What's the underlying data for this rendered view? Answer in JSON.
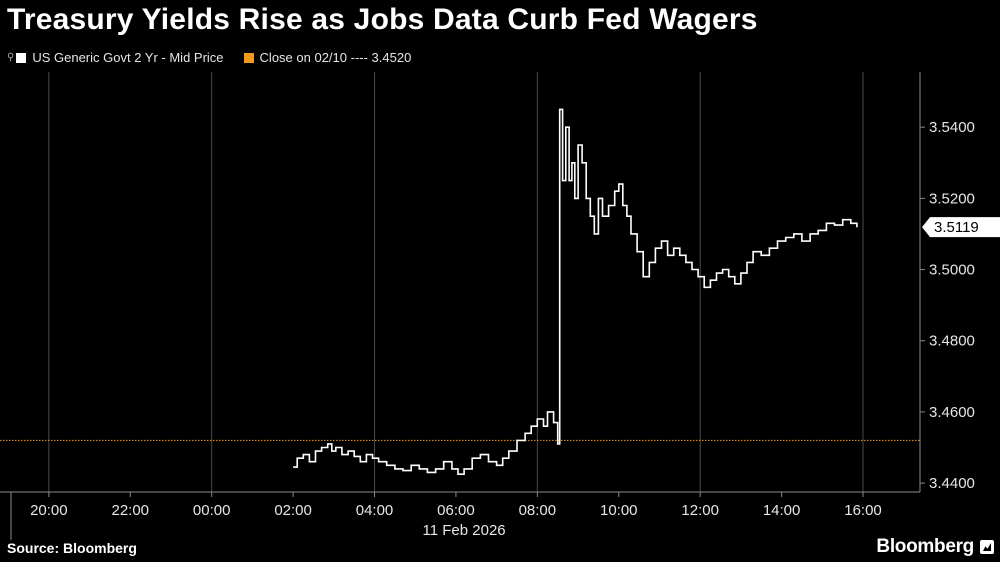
{
  "header": {
    "title": "Treasury Yields Rise as Jobs Data Curb Fed Wagers"
  },
  "legend": {
    "series_label": "US Generic Govt 2 Yr - Mid Price",
    "close_label": "Close on 02/10 ---- 3.4520"
  },
  "footer": {
    "source": "Source: Bloomberg",
    "brand": "Bloomberg"
  },
  "colors": {
    "series": "#ffffff",
    "close_line": "#f39a1b",
    "grid": "#4a4a4a",
    "background": "#000000"
  },
  "chart_data": {
    "type": "line",
    "title": "Treasury Yields Rise as Jobs Data Curb Fed Wagers",
    "xlabel": "11 Feb 2026",
    "ylabel": "",
    "x_ticks": [
      "20:00",
      "22:00",
      "00:00",
      "02:00",
      "04:00",
      "06:00",
      "08:00",
      "10:00",
      "12:00",
      "14:00",
      "16:00"
    ],
    "x_tick_hours": [
      -4,
      -2,
      0,
      2,
      4,
      6,
      8,
      10,
      12,
      14,
      16
    ],
    "x_range_hours": [
      -5.2,
      17.4
    ],
    "y_ticks": [
      "3.4400",
      "3.4600",
      "3.4800",
      "3.5000",
      "3.5200",
      "3.5400"
    ],
    "y_tick_values": [
      3.44,
      3.46,
      3.48,
      3.5,
      3.52,
      3.54
    ],
    "ylim": [
      3.4375,
      3.5555
    ],
    "grid": true,
    "axis_side": "right",
    "reference_line": {
      "label": "Close on 02/10",
      "value": 3.452
    },
    "last_value_label": "3.5119",
    "last_value": 3.5119,
    "series": [
      {
        "name": "US Generic Govt 2 Yr - Mid Price",
        "step": true,
        "x": [
          2.0,
          2.1,
          2.25,
          2.4,
          2.55,
          2.7,
          2.85,
          2.95,
          3.05,
          3.2,
          3.35,
          3.5,
          3.65,
          3.8,
          3.95,
          4.1,
          4.3,
          4.5,
          4.7,
          4.9,
          5.1,
          5.3,
          5.5,
          5.7,
          5.9,
          6.05,
          6.2,
          6.4,
          6.6,
          6.8,
          7.0,
          7.15,
          7.3,
          7.5,
          7.7,
          7.85,
          8.0,
          8.15,
          8.25,
          8.4,
          8.5,
          8.55,
          8.62,
          8.7,
          8.78,
          8.85,
          8.92,
          9.0,
          9.1,
          9.2,
          9.3,
          9.4,
          9.5,
          9.6,
          9.75,
          9.9,
          10.0,
          10.1,
          10.2,
          10.3,
          10.45,
          10.6,
          10.75,
          10.9,
          11.05,
          11.2,
          11.35,
          11.5,
          11.65,
          11.8,
          11.95,
          12.1,
          12.25,
          12.4,
          12.55,
          12.7,
          12.85,
          13.0,
          13.15,
          13.3,
          13.5,
          13.7,
          13.9,
          14.1,
          14.3,
          14.5,
          14.7,
          14.9,
          15.1,
          15.3,
          15.5,
          15.7,
          15.85
        ],
        "values": [
          3.4445,
          3.447,
          3.448,
          3.446,
          3.449,
          3.45,
          3.451,
          3.449,
          3.45,
          3.448,
          3.449,
          3.4475,
          3.446,
          3.448,
          3.447,
          3.446,
          3.445,
          3.444,
          3.4435,
          3.445,
          3.444,
          3.443,
          3.444,
          3.446,
          3.444,
          3.4425,
          3.444,
          3.447,
          3.448,
          3.446,
          3.445,
          3.447,
          3.449,
          3.452,
          3.454,
          3.456,
          3.458,
          3.456,
          3.46,
          3.457,
          3.451,
          3.545,
          3.525,
          3.54,
          3.525,
          3.53,
          3.52,
          3.535,
          3.53,
          3.52,
          3.515,
          3.51,
          3.52,
          3.515,
          3.518,
          3.522,
          3.524,
          3.518,
          3.515,
          3.51,
          3.505,
          3.498,
          3.502,
          3.506,
          3.508,
          3.504,
          3.506,
          3.504,
          3.502,
          3.5,
          3.498,
          3.495,
          3.497,
          3.499,
          3.5,
          3.498,
          3.496,
          3.499,
          3.502,
          3.505,
          3.504,
          3.506,
          3.508,
          3.509,
          3.51,
          3.508,
          3.51,
          3.511,
          3.513,
          3.5125,
          3.514,
          3.513,
          3.5119
        ]
      }
    ]
  }
}
